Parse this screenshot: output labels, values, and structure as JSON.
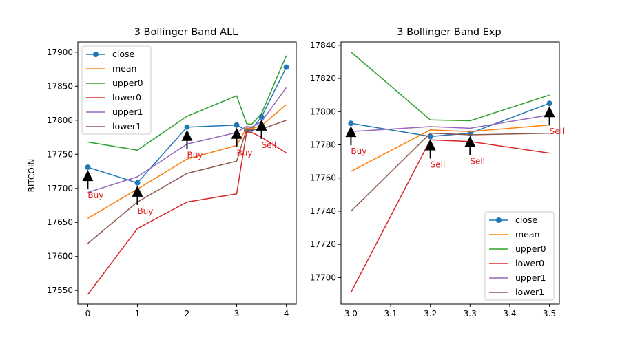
{
  "colors": {
    "close": "#1f77b4",
    "mean": "#ff7f0e",
    "upper0": "#2ca02c",
    "lower0": "#d62728",
    "upper1": "#9467bd",
    "lower1": "#8c564b",
    "annotation": "#e31a1c",
    "arrow": "#000000"
  },
  "chart_data": [
    {
      "type": "line",
      "title": "3 Bollinger Band ALL",
      "ylabel": "BITCOIN",
      "xlabel": "",
      "xlim": [
        -0.2,
        4.2
      ],
      "ylim": [
        17530,
        17915
      ],
      "xticks": [
        0,
        1,
        2,
        3,
        4
      ],
      "yticks": [
        17550,
        17600,
        17650,
        17700,
        17750,
        17800,
        17850,
        17900
      ],
      "legend": "upper-left",
      "series": [
        {
          "name": "close",
          "marker": "circle",
          "x": [
            0,
            1,
            2,
            3,
            3.2,
            3.3,
            3.5,
            4
          ],
          "y": [
            17731,
            17708,
            17790,
            17793,
            17785,
            17787,
            17805,
            17878
          ]
        },
        {
          "name": "mean",
          "x": [
            0,
            1,
            2,
            3,
            3.2,
            3.3,
            3.5,
            4
          ],
          "y": [
            17656,
            17699,
            17743,
            17763,
            17789,
            17788,
            17792,
            17823
          ]
        },
        {
          "name": "upper0",
          "x": [
            0,
            1,
            2,
            3,
            3.2,
            3.3,
            3.5,
            4
          ],
          "y": [
            17768,
            17756,
            17806,
            17836,
            17795,
            17794,
            17810,
            17895
          ]
        },
        {
          "name": "lower0",
          "x": [
            0,
            1,
            2,
            3,
            3.2,
            3.3,
            3.5,
            4
          ],
          "y": [
            17544,
            17641,
            17680,
            17692,
            17783,
            17782,
            17775,
            17752
          ]
        },
        {
          "name": "upper1",
          "x": [
            0,
            1,
            2,
            3,
            3.2,
            3.3,
            3.5,
            4
          ],
          "y": [
            17694,
            17717,
            17765,
            17782,
            17791,
            17790,
            17798,
            17848
          ]
        },
        {
          "name": "lower1",
          "x": [
            0,
            1,
            2,
            3,
            3.2,
            3.3,
            3.5,
            4
          ],
          "y": [
            17619,
            17680,
            17722,
            17740,
            17787,
            17786,
            17787,
            17800
          ]
        }
      ],
      "annotations": [
        {
          "text": "Buy",
          "x": 0,
          "y": 17731
        },
        {
          "text": "Buy",
          "x": 1,
          "y": 17708
        },
        {
          "text": "Buy",
          "x": 2,
          "y": 17790
        },
        {
          "text": "Buy",
          "x": 3,
          "y": 17793
        },
        {
          "text": "Sell",
          "x": 3.5,
          "y": 17805
        }
      ]
    },
    {
      "type": "line",
      "title": "3 Bollinger Band Exp",
      "xlabel": "",
      "ylabel": "",
      "xlim": [
        2.975,
        3.525
      ],
      "ylim": [
        17684,
        17842
      ],
      "xticks": [
        3.0,
        3.1,
        3.2,
        3.3,
        3.4,
        3.5
      ],
      "yticks": [
        17700,
        17720,
        17740,
        17760,
        17780,
        17800,
        17820,
        17840
      ],
      "legend": "lower-right",
      "series": [
        {
          "name": "close",
          "marker": "circle",
          "x": [
            3.0,
            3.2,
            3.3,
            3.5
          ],
          "y": [
            17793,
            17785,
            17787,
            17805
          ]
        },
        {
          "name": "mean",
          "x": [
            3.0,
            3.2,
            3.3,
            3.5
          ],
          "y": [
            17764,
            17789,
            17788,
            17792
          ]
        },
        {
          "name": "upper0",
          "x": [
            3.0,
            3.2,
            3.3,
            3.5
          ],
          "y": [
            17836,
            17795,
            17794.5,
            17810
          ]
        },
        {
          "name": "lower0",
          "x": [
            3.0,
            3.2,
            3.3,
            3.5
          ],
          "y": [
            17691,
            17783,
            17782,
            17775
          ]
        },
        {
          "name": "upper1",
          "x": [
            3.0,
            3.2,
            3.3,
            3.5
          ],
          "y": [
            17788,
            17791,
            17790,
            17798
          ]
        },
        {
          "name": "lower1",
          "x": [
            3.0,
            3.2,
            3.3,
            3.5
          ],
          "y": [
            17740,
            17787,
            17786,
            17787
          ]
        }
      ],
      "annotations": [
        {
          "text": "Buy",
          "x": 3.0,
          "y": 17793
        },
        {
          "text": "Sell",
          "x": 3.2,
          "y": 17785
        },
        {
          "text": "Sell",
          "x": 3.3,
          "y": 17787
        },
        {
          "text": "Sell",
          "x": 3.5,
          "y": 17805
        }
      ]
    }
  ]
}
